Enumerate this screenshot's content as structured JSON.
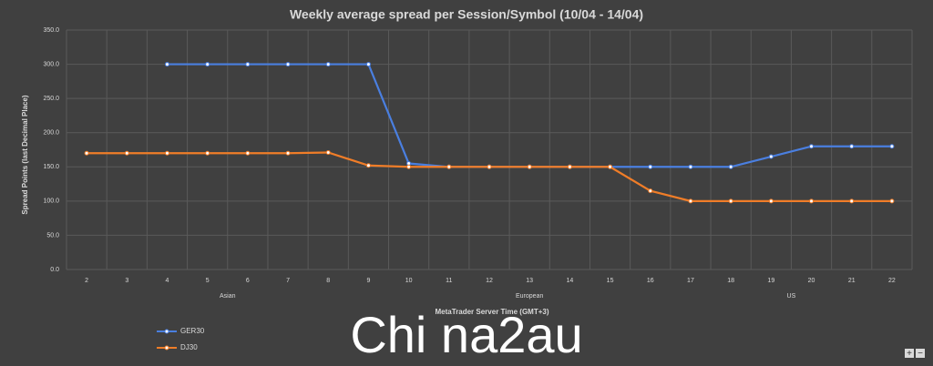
{
  "chart_data": {
    "type": "line",
    "title": "Weekly average spread per Session/Symbol (10/04 - 14/04)",
    "y_label": "Spread Points  (last Decimal Place)",
    "x_label": "MetaTrader Server Time (GMT+3)",
    "categories": [
      "2",
      "3",
      "4",
      "5",
      "6",
      "7",
      "8",
      "9",
      "10",
      "11",
      "12",
      "13",
      "14",
      "15",
      "16",
      "17",
      "18",
      "19",
      "20",
      "21",
      "22"
    ],
    "sessions": [
      {
        "name": "Asian",
        "from": "2",
        "to": "9"
      },
      {
        "name": "European",
        "from": "10",
        "to": "16"
      },
      {
        "name": "US",
        "from": "17",
        "to": "22"
      }
    ],
    "series": [
      {
        "name": "GER30",
        "color": "#4a7fe0",
        "values": [
          null,
          null,
          300,
          300,
          300,
          300,
          300,
          300,
          155,
          150,
          150,
          150,
          150,
          150,
          150,
          150,
          150,
          165,
          180,
          180,
          180
        ]
      },
      {
        "name": "DJ30",
        "color": "#f07d28",
        "values": [
          170,
          170,
          170,
          170,
          170,
          170,
          171,
          152,
          150,
          150,
          150,
          150,
          150,
          150,
          115,
          100,
          100,
          100,
          100,
          100,
          100
        ]
      }
    ],
    "ylim": [
      0,
      350
    ],
    "yticks": [
      {
        "value": 0,
        "label": "0.0"
      },
      {
        "value": 50,
        "label": "50.0"
      },
      {
        "value": 100,
        "label": "100.0"
      },
      {
        "value": 150,
        "label": "150.0"
      },
      {
        "value": 200,
        "label": "200.0"
      },
      {
        "value": 250,
        "label": "250.0"
      },
      {
        "value": 300,
        "label": "300.0"
      },
      {
        "value": 350,
        "label": "350.0"
      }
    ],
    "grid": true,
    "legend": "bottom-left"
  },
  "watermark": "Chi na2au",
  "controls": [
    "+",
    "−"
  ]
}
